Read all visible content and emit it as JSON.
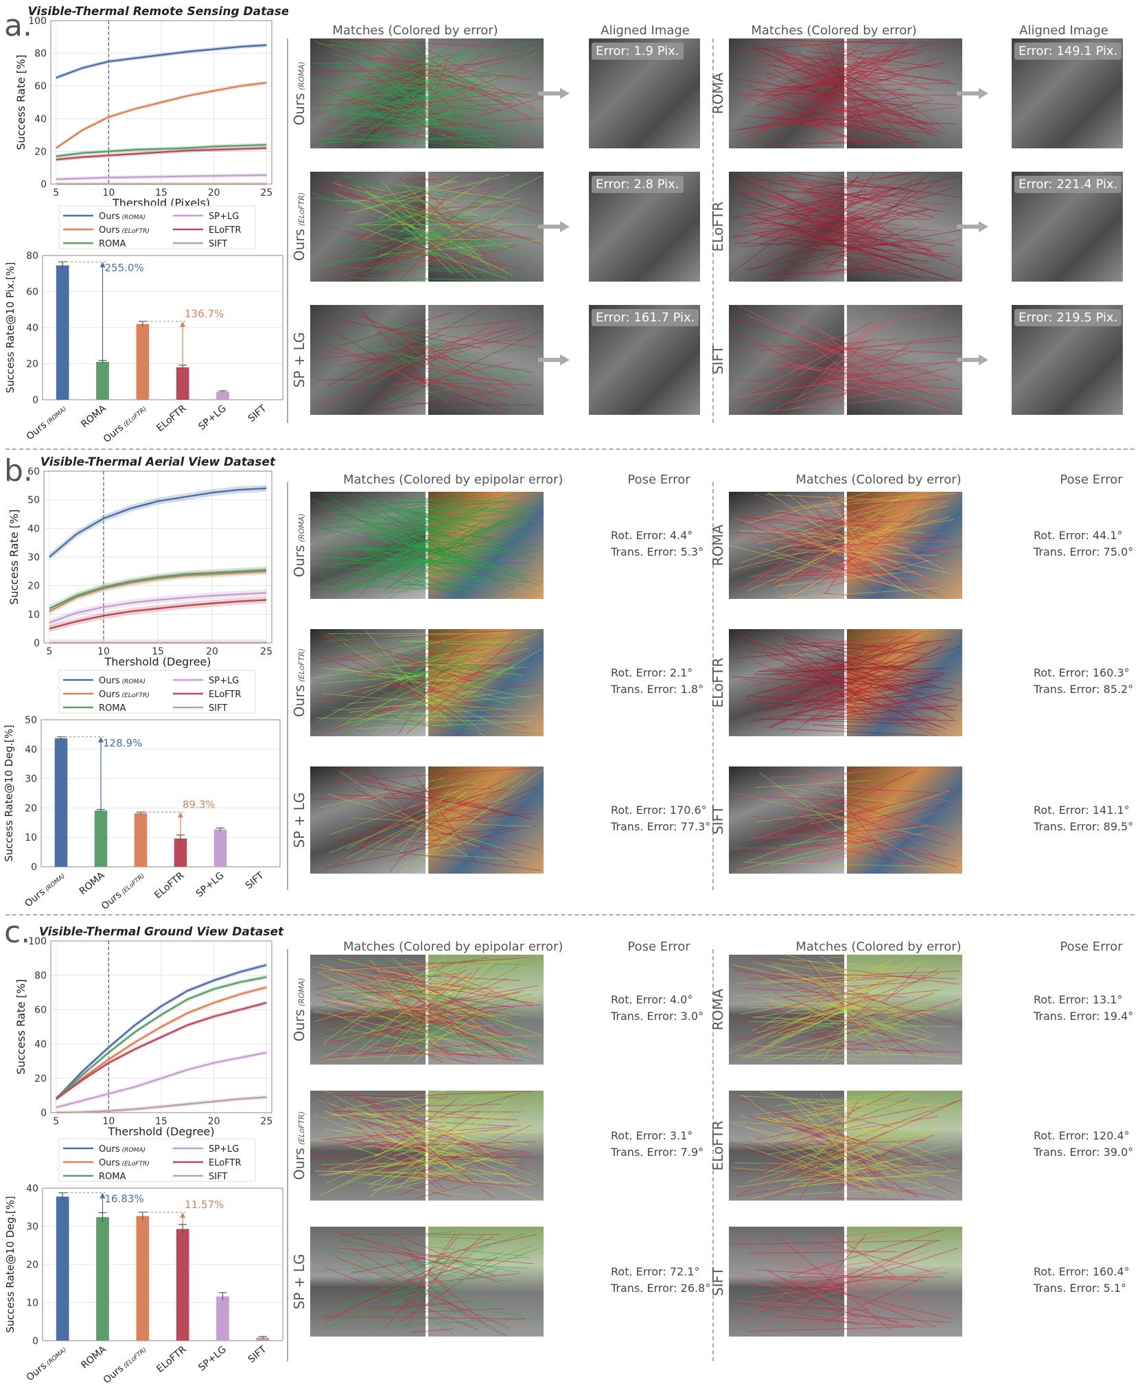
{
  "panels": {
    "a": {
      "letter": "a.",
      "title": "Visible-Thermal Remote Sensing Dataset",
      "match_head_1": "Matches (Colored by error)",
      "result_head_1": "Aligned Image",
      "match_head_2": "Matches (Colored by error)",
      "result_head_2": "Aligned Image",
      "left_rows": [
        {
          "label": "Ours",
          "sub": "(ROMA)",
          "result": "Error: 1.9 Pix."
        },
        {
          "label": "Ours",
          "sub": "(ELoFTR)",
          "result": "Error: 2.8 Pix."
        },
        {
          "label": "SP + LG",
          "sub": "",
          "result": "Error: 161.7 Pix."
        }
      ],
      "right_rows": [
        {
          "label": "ROMA",
          "sub": "",
          "result": "Error: 149.1 Pix."
        },
        {
          "label": "ELoFTR",
          "sub": "",
          "result": "Error: 221.4 Pix."
        },
        {
          "label": "SIFT",
          "sub": "",
          "result": "Error: 219.5 Pix."
        }
      ]
    },
    "b": {
      "letter": "b.",
      "title": "Visible-Thermal Aerial View Dataset",
      "match_head_1": "Matches (Colored by epipolar error)",
      "result_head_1": "Pose Error",
      "match_head_2": "Matches (Colored by error)",
      "result_head_2": "Pose Error",
      "left_rows": [
        {
          "label": "Ours",
          "sub": "(ROMA)",
          "rot": "Rot. Error: 4.4°",
          "trans": "Trans. Error: 5.3°"
        },
        {
          "label": "Ours",
          "sub": "(ELoFTR)",
          "rot": "Rot. Error: 2.1°",
          "trans": "Trans. Error: 1.8°"
        },
        {
          "label": "SP + LG",
          "sub": "",
          "rot": "Rot. Error: 170.6°",
          "trans": "Trans. Error: 77.3°"
        }
      ],
      "right_rows": [
        {
          "label": "ROMA",
          "sub": "",
          "rot": "Rot. Error: 44.1°",
          "trans": "Trans. Error: 75.0°"
        },
        {
          "label": "ELoFTR",
          "sub": "",
          "rot": "Rot. Error: 160.3°",
          "trans": "Trans. Error: 85.2°"
        },
        {
          "label": "SIFT",
          "sub": "",
          "rot": "Rot. Error: 141.1°",
          "trans": "Trans. Error: 89.5°"
        }
      ]
    },
    "c": {
      "letter": "c.",
      "title": "Visible-Thermal Ground View Dataset",
      "match_head_1": "Matches (Colored by epipolar error)",
      "result_head_1": "Pose Error",
      "match_head_2": "Matches (Colored by error)",
      "result_head_2": "Pose Error",
      "left_rows": [
        {
          "label": "Ours",
          "sub": "(ROMA)",
          "rot": "Rot. Error: 4.0°",
          "trans": "Trans. Error: 3.0°"
        },
        {
          "label": "Ours",
          "sub": "(ELoFTR)",
          "rot": "Rot. Error: 3.1°",
          "trans": "Trans. Error: 7.9°"
        },
        {
          "label": "SP + LG",
          "sub": "",
          "rot": "Rot. Error: 72.1°",
          "trans": "Trans. Error: 26.8°"
        }
      ],
      "right_rows": [
        {
          "label": "ROMA",
          "sub": "",
          "rot": "Rot. Error: 13.1°",
          "trans": "Trans. Error: 19.4°"
        },
        {
          "label": "ELoFTR",
          "sub": "",
          "rot": "Rot. Error: 120.4°",
          "trans": "Trans. Error: 39.0°"
        },
        {
          "label": "SIFT",
          "sub": "",
          "rot": "Rot. Error: 160.4°",
          "trans": "Trans. Error: 5.1°"
        }
      ]
    }
  },
  "legend": [
    {
      "name": "Ours",
      "sub": "(ROMA)",
      "color": "#4a6fa5"
    },
    {
      "name": "SP+LG",
      "sub": "",
      "color": "#c59fd1"
    },
    {
      "name": "Ours",
      "sub": "(ELoFTR)",
      "color": "#d9825b"
    },
    {
      "name": "ELoFTR",
      "sub": "",
      "color": "#b94a5a"
    },
    {
      "name": "ROMA",
      "sub": "",
      "color": "#5b9e6b"
    },
    {
      "name": "SIFT",
      "sub": "",
      "color": "#b9a39b"
    }
  ],
  "chart_data": [
    {
      "id": "a-line",
      "type": "line",
      "title": "Visible-Thermal Remote Sensing Dataset",
      "xlabel": "Thershold (Pixels)",
      "ylabel": "Success Rate [%]",
      "xlim": [
        4.5,
        25.5
      ],
      "ylim": [
        0,
        100
      ],
      "xticks": [
        5,
        10,
        15,
        20,
        25
      ],
      "yticks": [
        0,
        20,
        40,
        60,
        80,
        100
      ],
      "vline": 10,
      "grid": true,
      "x": [
        5,
        7.5,
        10,
        12.5,
        15,
        17.5,
        20,
        22.5,
        25
      ],
      "series": [
        {
          "name": "Ours (ROMA)",
          "color": "#4a6fa5",
          "values": [
            65,
            71,
            75,
            77,
            79,
            81,
            82.5,
            84,
            85
          ]
        },
        {
          "name": "Ours (ELoFTR)",
          "color": "#d9825b",
          "values": [
            22,
            33,
            41,
            46,
            50,
            54,
            57,
            60,
            62
          ]
        },
        {
          "name": "ROMA",
          "color": "#5b9e6b",
          "values": [
            17,
            19,
            20,
            21,
            21.5,
            22,
            23,
            23.5,
            24
          ]
        },
        {
          "name": "ELoFTR",
          "color": "#b94a5a",
          "values": [
            15,
            16.5,
            17.5,
            18.5,
            19.5,
            20.5,
            21,
            21.5,
            22
          ]
        },
        {
          "name": "SP+LG",
          "color": "#c59fd1",
          "values": [
            3,
            3.5,
            4,
            4.2,
            4.5,
            4.8,
            5,
            5.3,
            5.5
          ]
        },
        {
          "name": "SIFT",
          "color": "#b9a39b",
          "values": [
            0,
            0,
            0,
            0,
            0,
            0,
            0,
            0,
            0
          ]
        }
      ]
    },
    {
      "id": "a-bar",
      "type": "bar",
      "ylabel": "Success Rate@10 Pix.[%]",
      "ylim": [
        0,
        80
      ],
      "yticks": [
        0,
        20,
        40,
        60,
        80
      ],
      "categories": [
        "Ours (ROMA)",
        "ROMA",
        "Ours (ELoFTR)",
        "ELoFTR",
        "SP+LG",
        "SIFT"
      ],
      "values": [
        74.5,
        21,
        42,
        18,
        4.5,
        0
      ],
      "errors": [
        2,
        0.8,
        1.5,
        1.2,
        0.5,
        0
      ],
      "colors": [
        "#4a6fa5",
        "#5b9e6b",
        "#d9825b",
        "#b94a5a",
        "#c59fd1",
        "#b9a39b"
      ],
      "annotations": [
        {
          "text": "255.0%",
          "from": 1,
          "to": 0,
          "color": "#4a6fa5"
        },
        {
          "text": "136.7%",
          "from": 3,
          "to": 2,
          "color": "#d9825b"
        }
      ]
    },
    {
      "id": "b-line",
      "type": "line",
      "title": "Visible-Thermal Aerial View Dataset",
      "xlabel": "Thershold (Degree)",
      "ylabel": "Success Rate [%]",
      "xlim": [
        4.5,
        25.5
      ],
      "ylim": [
        0,
        60
      ],
      "xticks": [
        5,
        10,
        15,
        20,
        25
      ],
      "yticks": [
        0,
        10,
        20,
        30,
        40,
        50,
        60
      ],
      "vline": 10,
      "grid": true,
      "x": [
        5,
        7.5,
        10,
        12.5,
        15,
        17.5,
        20,
        22.5,
        25
      ],
      "series": [
        {
          "name": "Ours (ROMA)",
          "color": "#4a6fa5",
          "values": [
            30,
            38,
            43.5,
            47,
            49.5,
            51,
            52.5,
            53.5,
            54
          ]
        },
        {
          "name": "Ours (ELoFTR)",
          "color": "#d9825b",
          "values": [
            11,
            16,
            19,
            21,
            22.5,
            23.5,
            24,
            24.5,
            25
          ]
        },
        {
          "name": "ROMA",
          "color": "#5b9e6b",
          "values": [
            12,
            16.5,
            19.5,
            21.5,
            23,
            24,
            24.5,
            25,
            25.5
          ]
        },
        {
          "name": "ELoFTR",
          "color": "#b94a5a",
          "values": [
            5,
            7.5,
            9.5,
            11,
            12,
            13,
            13.8,
            14.5,
            15
          ]
        },
        {
          "name": "SP+LG",
          "color": "#c59fd1",
          "values": [
            7,
            10.5,
            12.5,
            14,
            15,
            15.8,
            16.5,
            17,
            17.5
          ]
        },
        {
          "name": "SIFT",
          "color": "#b9a39b",
          "values": [
            0,
            0,
            0,
            0,
            0,
            0,
            0,
            0,
            0
          ]
        }
      ]
    },
    {
      "id": "b-bar",
      "type": "bar",
      "ylabel": "Success Rate@10 Deg.[%]",
      "ylim": [
        0,
        50
      ],
      "yticks": [
        0,
        10,
        20,
        30,
        40,
        50
      ],
      "categories": [
        "Ours (ROMA)",
        "ROMA",
        "Ours (ELoFTR)",
        "ELoFTR",
        "SP+LG",
        "SIFT"
      ],
      "values": [
        43.7,
        19.1,
        18.2,
        9.6,
        12.7,
        0
      ],
      "errors": [
        0.5,
        0.4,
        0.4,
        1.2,
        0.5,
        0
      ],
      "colors": [
        "#4a6fa5",
        "#5b9e6b",
        "#d9825b",
        "#b94a5a",
        "#c59fd1",
        "#b9a39b"
      ],
      "annotations": [
        {
          "text": "128.9%",
          "from": 1,
          "to": 0,
          "color": "#4a6fa5"
        },
        {
          "text": "89.3%",
          "from": 3,
          "to": 2,
          "color": "#d9825b"
        }
      ]
    },
    {
      "id": "c-line",
      "type": "line",
      "title": "Visible-Thermal Ground View Dataset",
      "xlabel": "Thershold (Degree)",
      "ylabel": "Success Rate [%]",
      "xlim": [
        4.5,
        25.5
      ],
      "ylim": [
        0,
        100
      ],
      "xticks": [
        5,
        10,
        15,
        20,
        25
      ],
      "yticks": [
        0,
        20,
        40,
        60,
        80,
        100
      ],
      "vline": 10,
      "grid": true,
      "x": [
        5,
        7.5,
        10,
        12.5,
        15,
        17.5,
        20,
        22.5,
        25
      ],
      "series": [
        {
          "name": "Ours (ROMA)",
          "color": "#4a6fa5",
          "values": [
            8,
            24,
            38,
            51,
            62,
            71,
            77,
            82,
            86
          ]
        },
        {
          "name": "Ours (ELoFTR)",
          "color": "#d9825b",
          "values": [
            8,
            20,
            31,
            41,
            50,
            58,
            64,
            69,
            73
          ]
        },
        {
          "name": "ROMA",
          "color": "#5b9e6b",
          "values": [
            8,
            22,
            35,
            47,
            57,
            66,
            72,
            76,
            79
          ]
        },
        {
          "name": "ELoFTR",
          "color": "#b94a5a",
          "values": [
            8,
            19,
            29,
            37,
            44,
            51,
            56,
            60,
            64
          ]
        },
        {
          "name": "SP+LG",
          "color": "#c59fd1",
          "values": [
            3,
            7,
            11,
            15,
            20,
            25,
            29,
            32,
            35
          ]
        },
        {
          "name": "SIFT",
          "color": "#b9a39b",
          "values": [
            0,
            0.3,
            1,
            2,
            3.5,
            5,
            6.5,
            8,
            9
          ]
        }
      ]
    },
    {
      "id": "c-bar",
      "type": "bar",
      "ylabel": "Success Rate@10 Deg.[%]",
      "ylim": [
        0,
        40
      ],
      "yticks": [
        0,
        10,
        20,
        30,
        40
      ],
      "categories": [
        "Ours (ROMA)",
        "ROMA",
        "Ours (ELoFTR)",
        "ELoFTR",
        "SP+LG",
        "SIFT"
      ],
      "values": [
        37.8,
        32.4,
        32.7,
        29.3,
        11.6,
        0.8
      ],
      "errors": [
        1,
        1.2,
        1,
        1.2,
        1,
        0.3
      ],
      "colors": [
        "#4a6fa5",
        "#5b9e6b",
        "#d9825b",
        "#b94a5a",
        "#c59fd1",
        "#b9a39b"
      ],
      "annotations": [
        {
          "text": "16.83%",
          "from": 1,
          "to": 0,
          "color": "#4a6fa5"
        },
        {
          "text": "11.57%",
          "from": 3,
          "to": 2,
          "color": "#d9825b"
        }
      ]
    }
  ]
}
